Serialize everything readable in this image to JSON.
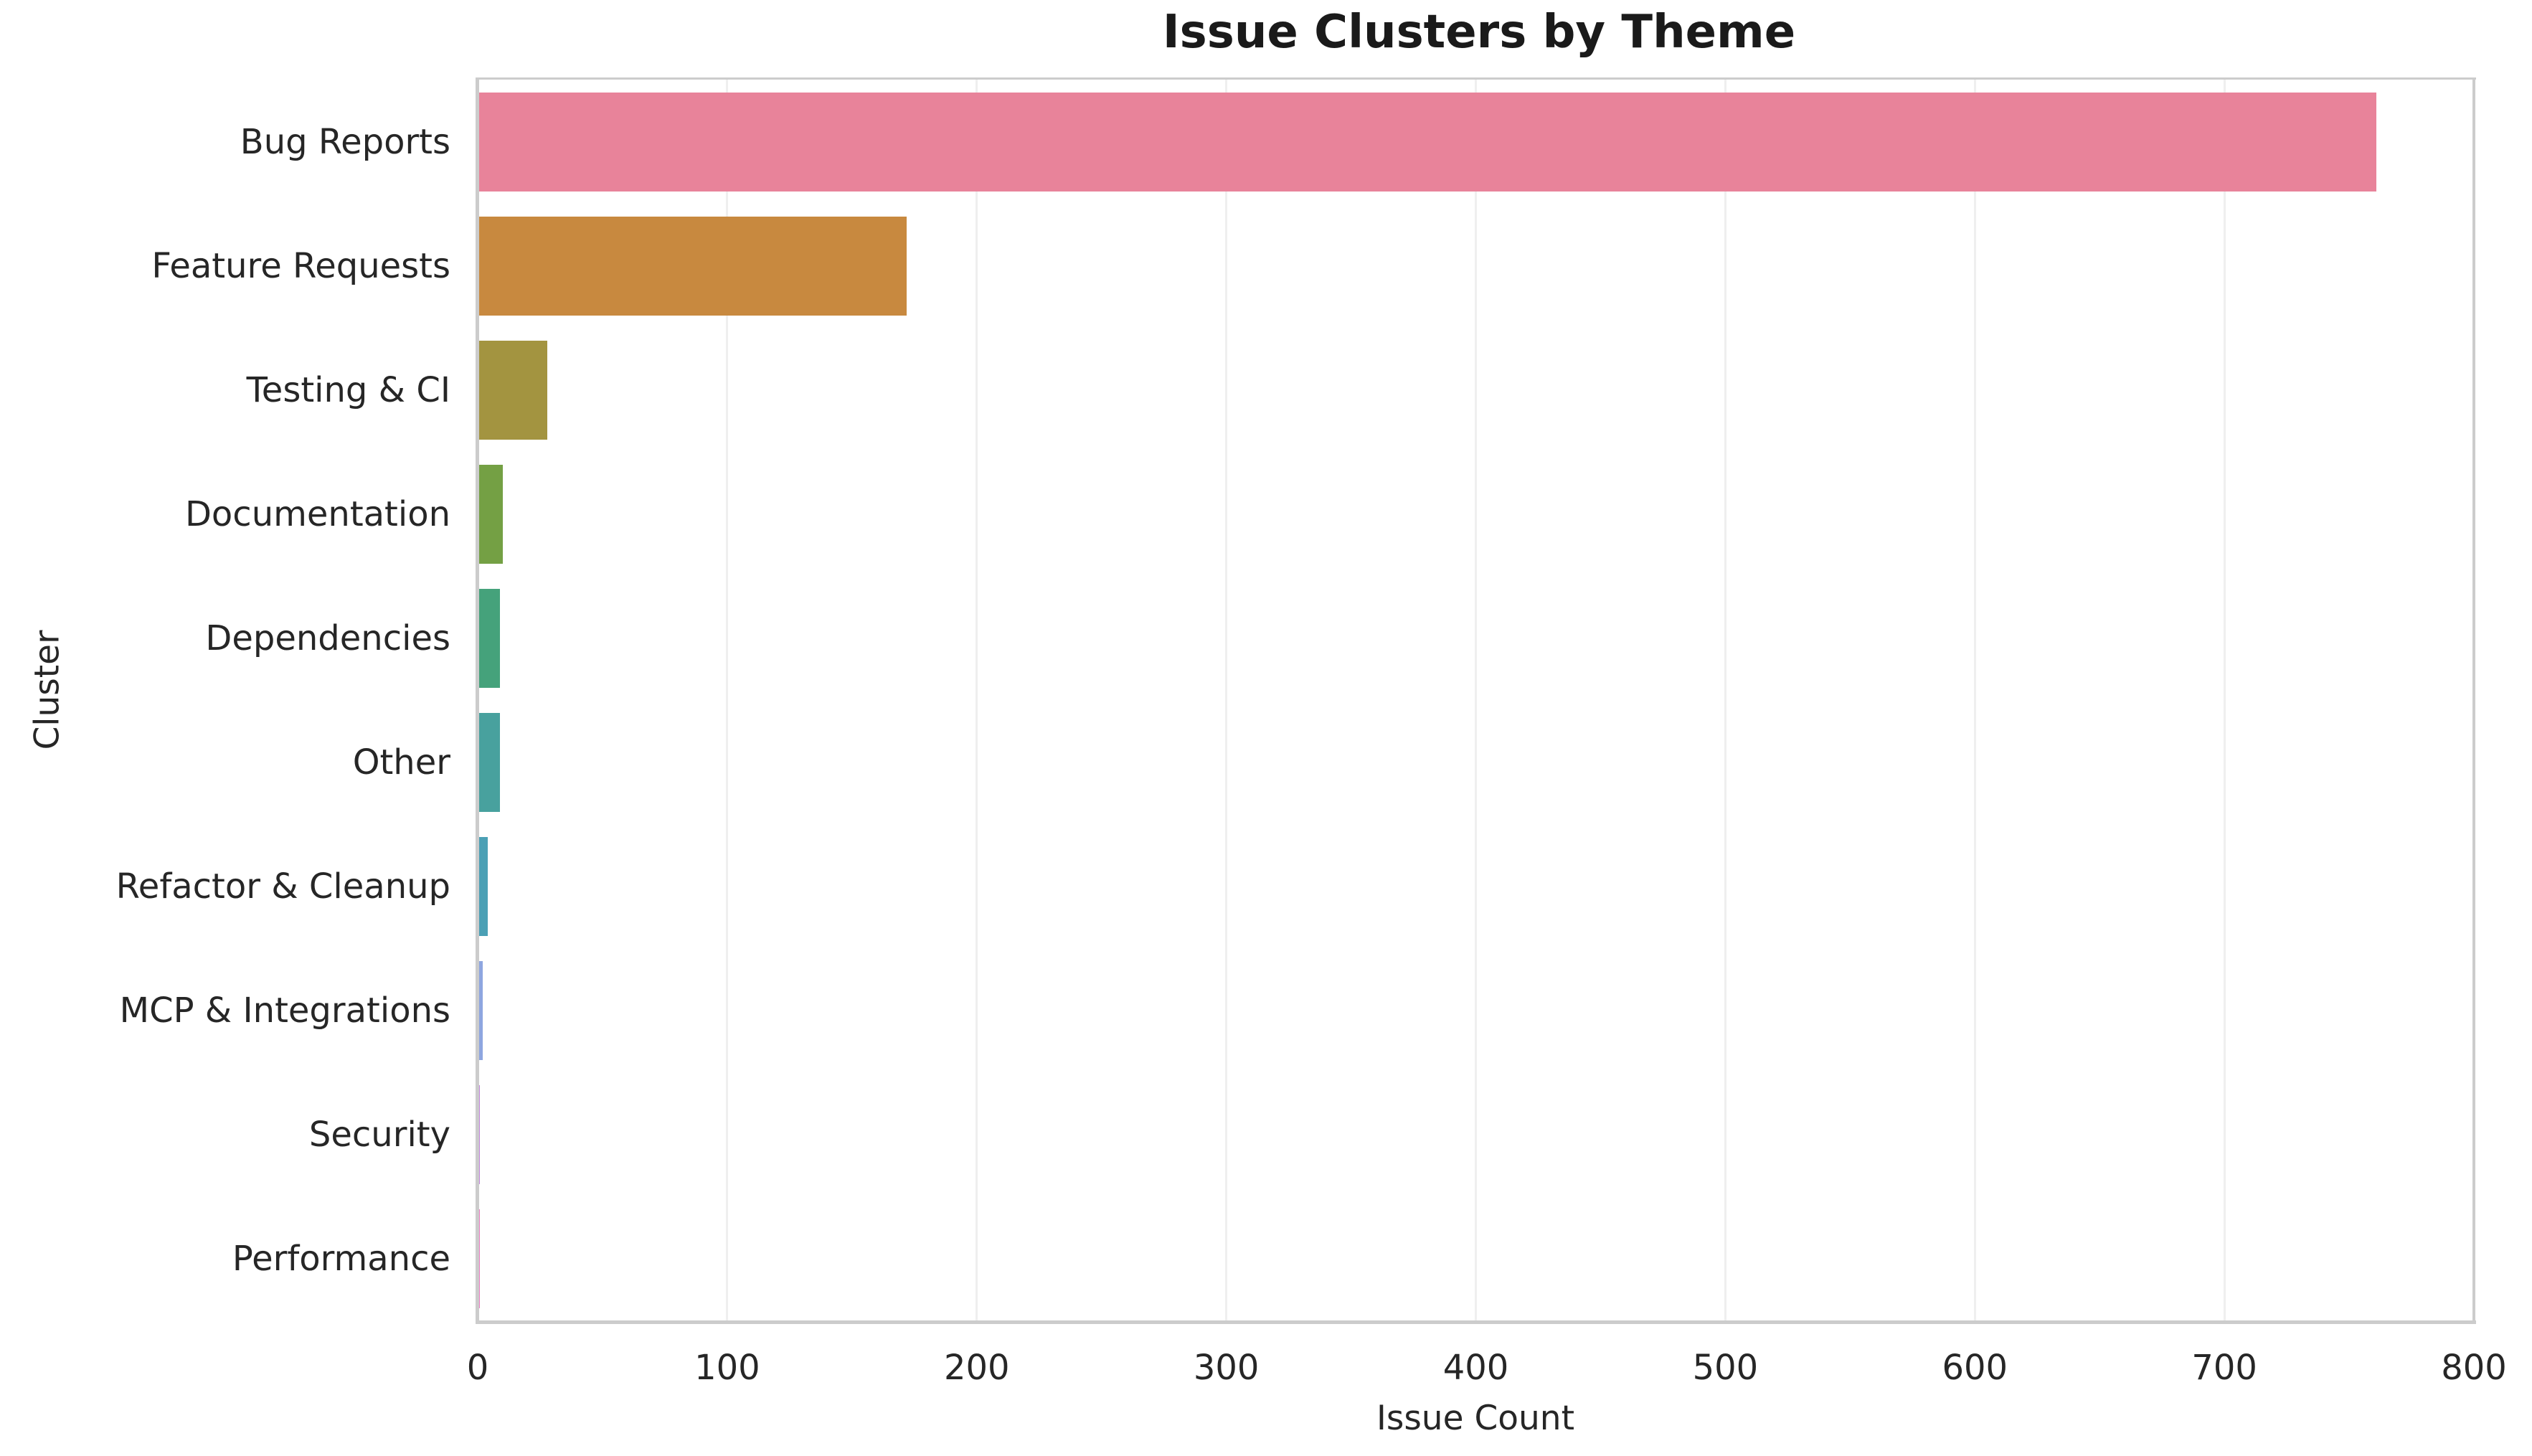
{
  "chart_data": {
    "type": "bar",
    "orientation": "horizontal",
    "title": "Issue Clusters by Theme",
    "xlabel": "Issue Count",
    "ylabel": "Cluster",
    "categories": [
      "Bug Reports",
      "Feature Requests",
      "Testing & CI",
      "Documentation",
      "Dependencies",
      "Other",
      "Refactor & Cleanup",
      "MCP & Integrations",
      "Security",
      "Performance"
    ],
    "values": [
      761,
      172,
      28,
      10,
      9,
      9,
      4,
      2,
      1,
      1
    ],
    "bar_colors": [
      "#e8839a",
      "#c8893f",
      "#a39440",
      "#74a044",
      "#45a27b",
      "#48a19e",
      "#4ba0b5",
      "#8ea6e0",
      "#c488dd",
      "#ec7fc4"
    ],
    "xlim": [
      0,
      800
    ],
    "xticks": [
      0,
      100,
      200,
      300,
      400,
      500,
      600,
      700,
      800
    ],
    "grid": "vertical",
    "legend": "none",
    "styles": {
      "background": "#ffffff",
      "grid_color": "#efefef",
      "spine_color": "#cccccc",
      "tick_color": "#262626",
      "title_color": "#1a1a1a"
    }
  }
}
